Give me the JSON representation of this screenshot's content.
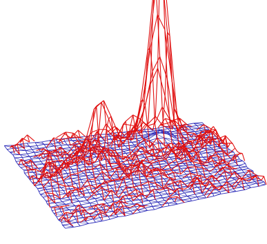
{
  "chart_data": {
    "type": "surface-wireframe",
    "title": "",
    "xlabel": "",
    "ylabel": "",
    "zlabel": "",
    "grid_size": [
      28,
      28
    ],
    "layers": [
      {
        "role": "base",
        "color": "#2b2bb8"
      },
      {
        "role": "surface",
        "color": "#e01010"
      }
    ],
    "peaks": [
      {
        "x": 0.74,
        "y": 0.16,
        "height": 1.0,
        "width": 0.035
      },
      {
        "x": 0.7,
        "y": 0.22,
        "height": 0.72,
        "width": 0.05
      },
      {
        "x": 0.4,
        "y": 0.28,
        "height": 0.42,
        "width": 0.04
      },
      {
        "x": 0.55,
        "y": 0.3,
        "height": 0.2,
        "width": 0.05
      },
      {
        "x": 0.2,
        "y": 0.52,
        "height": 0.18,
        "width": 0.06
      },
      {
        "x": 0.04,
        "y": 0.58,
        "height": 0.25,
        "width": 0.03
      },
      {
        "x": 0.3,
        "y": 0.55,
        "height": 0.15,
        "width": 0.05
      },
      {
        "x": 0.45,
        "y": 0.7,
        "height": 0.12,
        "width": 0.06
      },
      {
        "x": 0.7,
        "y": 0.6,
        "height": 0.14,
        "width": 0.05
      },
      {
        "x": 0.9,
        "y": 0.45,
        "height": 0.16,
        "width": 0.05
      },
      {
        "x": 0.6,
        "y": 0.5,
        "height": 0.1,
        "width": 0.06
      },
      {
        "x": 0.35,
        "y": 0.45,
        "height": 0.1,
        "width": 0.05
      }
    ],
    "noise_amplitude": 0.045,
    "grid": false,
    "legend": "none"
  }
}
